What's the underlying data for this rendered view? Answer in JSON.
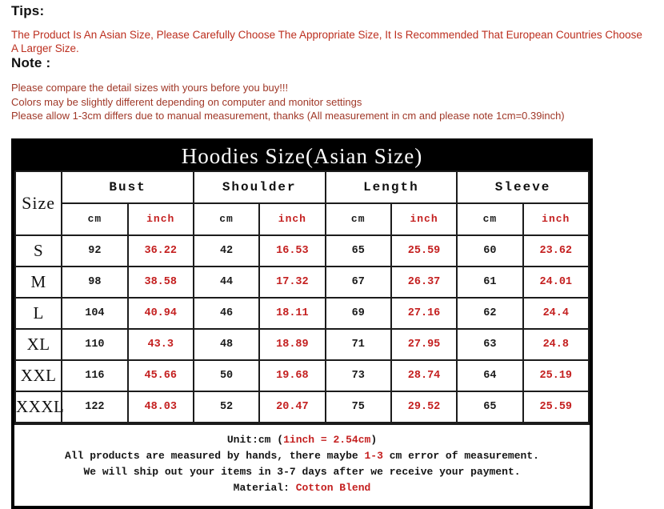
{
  "page": {
    "tips_heading": "Tips:",
    "tips_text": "The Product Is An Asian Size, Please Carefully Choose The Appropriate Size, It Is Recommended That European Countries Choose A Larger Size.",
    "note_heading": "Note :",
    "note_lines": [
      "Please compare the detail sizes with yours before you buy!!!",
      "Colors may be slightly different depending on computer and monitor settings",
      "Please allow 1-3cm differs due to manual measurement, thanks (All measurement in cm and please note 1cm=0.39inch)"
    ]
  },
  "size_table": {
    "title": "Hoodies Size(Asian Size)",
    "corner_label": "Size",
    "groups": [
      "Bust",
      "Shoulder",
      "Length",
      "Sleeve"
    ],
    "unit_headers": [
      "cm",
      "inch",
      "cm",
      "inch",
      "cm",
      "inch",
      "cm",
      "inch"
    ],
    "rows": [
      {
        "size": "S",
        "values": [
          "92",
          "36.22",
          "42",
          "16.53",
          "65",
          "25.59",
          "60",
          "23.62"
        ]
      },
      {
        "size": "M",
        "values": [
          "98",
          "38.58",
          "44",
          "17.32",
          "67",
          "26.37",
          "61",
          "24.01"
        ]
      },
      {
        "size": "L",
        "values": [
          "104",
          "40.94",
          "46",
          "18.11",
          "69",
          "27.16",
          "62",
          "24.4"
        ]
      },
      {
        "size": "XL",
        "values": [
          "110",
          "43.3",
          "48",
          "18.89",
          "71",
          "27.95",
          "63",
          "24.8"
        ]
      },
      {
        "size": "XXL",
        "values": [
          "116",
          "45.66",
          "50",
          "19.68",
          "73",
          "28.74",
          "64",
          "25.19"
        ]
      },
      {
        "size": "XXXL",
        "values": [
          "122",
          "48.03",
          "52",
          "20.47",
          "75",
          "29.52",
          "65",
          "25.59"
        ]
      }
    ],
    "footer": {
      "line1_prefix": "Unit:cm (",
      "line1_red": "1inch = 2.54cm",
      "line1_suffix": ")",
      "line2_prefix": "All products are measured by hands, there maybe ",
      "line2_red": "1-3",
      "line2_suffix": " cm error of measurement.",
      "line3": "We will ship out your items in 3-7 days after we receive your payment.",
      "line4_prefix": "Material: ",
      "line4_red": "Cotton Blend"
    }
  },
  "colors": {
    "accent_red": "#c41f1f",
    "tips_text": "#bc2f1f",
    "note_text": "#a03828",
    "title_bar_bg": "#000000",
    "title_bar_text": "#ffffff",
    "border": "#1c1c1c"
  }
}
